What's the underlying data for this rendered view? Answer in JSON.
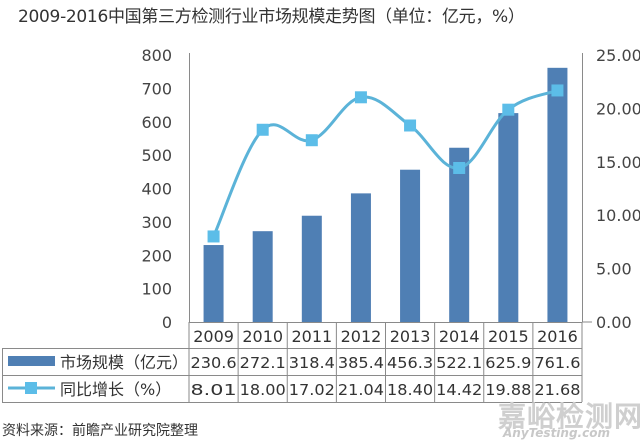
{
  "title": "2009-2016中国第三方检测行业市场规模走势图（单位：亿元，%）",
  "source": "资料来源：前瞻产业研究院整理",
  "watermark": {
    "cn": "嘉峪检测网",
    "en": "AnyTesting.com"
  },
  "colors": {
    "bar": "#4f7fb4",
    "line": "#5bb3d8",
    "marker": "#5cbde8",
    "axis": "#888888",
    "grid_table": "#8a8a8a"
  },
  "chart_data": {
    "type": "bar",
    "title": "2009-2016中国第三方检测行业市场规模走势图（单位：亿元，%）",
    "categories": [
      "2009",
      "2010",
      "2011",
      "2012",
      "2013",
      "2014",
      "2015",
      "2016"
    ],
    "series": [
      {
        "name": "市场规模（亿元）",
        "type": "bar",
        "axis": "left",
        "values": [
          230.6,
          272.1,
          318.4,
          385.4,
          456.3,
          522.1,
          625.9,
          761.6
        ]
      },
      {
        "name": "同比增长（%）",
        "type": "line",
        "axis": "right",
        "values": [
          8.01,
          18.0,
          17.02,
          21.04,
          18.4,
          14.42,
          19.88,
          21.68
        ]
      }
    ],
    "left_axis": {
      "ylim": [
        0,
        800
      ],
      "ticks": [
        "0",
        "100",
        "200",
        "300",
        "400",
        "500",
        "600",
        "700",
        "800"
      ]
    },
    "right_axis": {
      "ylim": [
        0,
        25
      ],
      "ticks": [
        "0.00",
        "5.00",
        "10.00",
        "15.00",
        "20.00",
        "25.00"
      ]
    },
    "data_table": {
      "rows": [
        {
          "label": "市场规模（亿元）",
          "values": [
            "230.6",
            "272.1",
            "318.4",
            "385.4",
            "456.3",
            "522.1",
            "625.9",
            "761.6"
          ]
        },
        {
          "label": "同比增长（%）",
          "values": [
            "8.01",
            "18.00",
            "17.02",
            "21.04",
            "18.40",
            "14.42",
            "19.88",
            "21.68"
          ]
        }
      ]
    },
    "grid": false,
    "legend_position": "data-table"
  }
}
